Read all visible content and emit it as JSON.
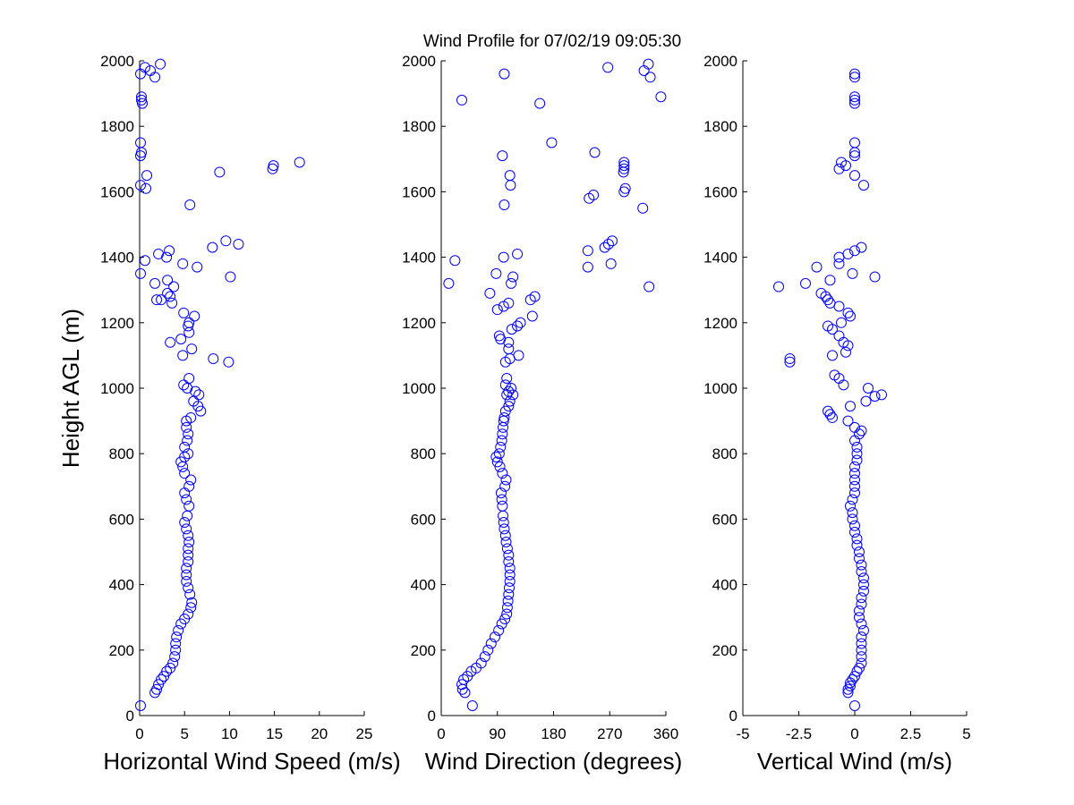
{
  "figure": {
    "title": "Wind Profile for  07/02/19 09:05:30",
    "marker_color": "#0000ff"
  },
  "chart_data": [
    {
      "type": "scatter",
      "name": "speed",
      "xlabel": "Horizontal Wind Speed (m/s)",
      "ylabel": "Height AGL (m)",
      "xlim": [
        0,
        25
      ],
      "ylim": [
        0,
        2000
      ],
      "xticks": [
        0,
        5,
        10,
        15,
        20,
        25
      ],
      "xtick_labels": [
        "0",
        "5",
        "10",
        "15",
        "20",
        "25"
      ],
      "yticks": [
        0,
        200,
        400,
        600,
        800,
        1000,
        1200,
        1400,
        1600,
        1800,
        2000
      ],
      "ytick_labels": [
        "0",
        "200",
        "400",
        "600",
        "800",
        "1000",
        "1200",
        "1400",
        "1600",
        "1800",
        "2000"
      ],
      "points": [
        [
          0.1,
          30
        ],
        [
          1.7,
          70
        ],
        [
          1.9,
          80
        ],
        [
          2.1,
          95
        ],
        [
          2.4,
          110
        ],
        [
          2.7,
          120
        ],
        [
          3.0,
          135
        ],
        [
          3.4,
          145
        ],
        [
          3.7,
          160
        ],
        [
          3.9,
          180
        ],
        [
          4.0,
          200
        ],
        [
          4.0,
          220
        ],
        [
          4.1,
          240
        ],
        [
          4.3,
          260
        ],
        [
          4.6,
          280
        ],
        [
          5.0,
          295
        ],
        [
          5.4,
          310
        ],
        [
          5.7,
          330
        ],
        [
          5.8,
          345
        ],
        [
          5.6,
          370
        ],
        [
          5.4,
          390
        ],
        [
          5.2,
          410
        ],
        [
          5.2,
          430
        ],
        [
          5.2,
          450
        ],
        [
          5.4,
          470
        ],
        [
          5.4,
          490
        ],
        [
          5.4,
          510
        ],
        [
          5.5,
          530
        ],
        [
          5.4,
          550
        ],
        [
          5.2,
          570
        ],
        [
          5.0,
          590
        ],
        [
          5.3,
          610
        ],
        [
          5.5,
          640
        ],
        [
          5.2,
          660
        ],
        [
          5.0,
          680
        ],
        [
          5.5,
          700
        ],
        [
          5.7,
          720
        ],
        [
          5.0,
          740
        ],
        [
          4.8,
          760
        ],
        [
          4.6,
          775
        ],
        [
          5.0,
          790
        ],
        [
          5.4,
          800
        ],
        [
          5.0,
          820
        ],
        [
          5.3,
          840
        ],
        [
          5.4,
          860
        ],
        [
          5.2,
          880
        ],
        [
          5.2,
          900
        ],
        [
          5.7,
          910
        ],
        [
          6.8,
          930
        ],
        [
          6.5,
          945
        ],
        [
          6.0,
          960
        ],
        [
          6.6,
          980
        ],
        [
          6.2,
          990
        ],
        [
          5.3,
          1000
        ],
        [
          4.9,
          1010
        ],
        [
          5.5,
          1030
        ],
        [
          9.9,
          1080
        ],
        [
          8.2,
          1090
        ],
        [
          4.8,
          1100
        ],
        [
          5.8,
          1120
        ],
        [
          3.4,
          1140
        ],
        [
          4.6,
          1150
        ],
        [
          5.5,
          1170
        ],
        [
          5.4,
          1190
        ],
        [
          5.5,
          1200
        ],
        [
          4.9,
          1230
        ],
        [
          6.1,
          1220
        ],
        [
          3.6,
          1260
        ],
        [
          2.4,
          1270
        ],
        [
          1.9,
          1270
        ],
        [
          3.4,
          1280
        ],
        [
          3.1,
          1290
        ],
        [
          3.8,
          1310
        ],
        [
          3.1,
          1330
        ],
        [
          1.7,
          1320
        ],
        [
          0.1,
          1350
        ],
        [
          10.1,
          1340
        ],
        [
          6.4,
          1370
        ],
        [
          4.8,
          1380
        ],
        [
          0.6,
          1390
        ],
        [
          3.0,
          1400
        ],
        [
          2.1,
          1410
        ],
        [
          3.3,
          1420
        ],
        [
          8.1,
          1430
        ],
        [
          9.6,
          1450
        ],
        [
          11.0,
          1440
        ],
        [
          5.6,
          1560
        ],
        [
          0.1,
          1620
        ],
        [
          0.7,
          1610
        ],
        [
          0.8,
          1650
        ],
        [
          8.9,
          1660
        ],
        [
          14.8,
          1670
        ],
        [
          14.9,
          1680
        ],
        [
          17.8,
          1690
        ],
        [
          0.1,
          1710
        ],
        [
          0.2,
          1720
        ],
        [
          0.1,
          1750
        ],
        [
          0.3,
          1870
        ],
        [
          0.2,
          1880
        ],
        [
          0.2,
          1890
        ],
        [
          0.1,
          1960
        ],
        [
          0.6,
          1980
        ],
        [
          1.2,
          1970
        ],
        [
          1.7,
          1950
        ],
        [
          2.3,
          1990
        ]
      ]
    },
    {
      "type": "scatter",
      "name": "direction",
      "xlabel": "Wind Direction (degrees)",
      "ylabel": "",
      "xlim": [
        0,
        360
      ],
      "ylim": [
        0,
        2000
      ],
      "xticks": [
        0,
        90,
        180,
        270,
        360
      ],
      "xtick_labels": [
        "0",
        "90",
        "180",
        "270",
        "360"
      ],
      "yticks": [
        0,
        200,
        400,
        600,
        800,
        1000,
        1200,
        1400,
        1600,
        1800,
        2000
      ],
      "ytick_labels": [
        "0",
        "200",
        "400",
        "600",
        "800",
        "1000",
        "1200",
        "1400",
        "1600",
        "1800",
        "2000"
      ],
      "points": [
        [
          50,
          30
        ],
        [
          38,
          70
        ],
        [
          34,
          80
        ],
        [
          33,
          95
        ],
        [
          36,
          110
        ],
        [
          42,
          120
        ],
        [
          48,
          135
        ],
        [
          56,
          145
        ],
        [
          64,
          160
        ],
        [
          70,
          180
        ],
        [
          75,
          200
        ],
        [
          80,
          220
        ],
        [
          86,
          240
        ],
        [
          92,
          260
        ],
        [
          97,
          280
        ],
        [
          102,
          295
        ],
        [
          105,
          310
        ],
        [
          106,
          330
        ],
        [
          107,
          350
        ],
        [
          108,
          370
        ],
        [
          109,
          390
        ],
        [
          110,
          410
        ],
        [
          110,
          430
        ],
        [
          110,
          450
        ],
        [
          108,
          470
        ],
        [
          108,
          490
        ],
        [
          106,
          510
        ],
        [
          104,
          530
        ],
        [
          103,
          550
        ],
        [
          101,
          570
        ],
        [
          100,
          590
        ],
        [
          99,
          610
        ],
        [
          98,
          640
        ],
        [
          97,
          660
        ],
        [
          96,
          680
        ],
        [
          102,
          700
        ],
        [
          104,
          720
        ],
        [
          98,
          740
        ],
        [
          94,
          760
        ],
        [
          90,
          775
        ],
        [
          88,
          790
        ],
        [
          93,
          800
        ],
        [
          95,
          820
        ],
        [
          97,
          840
        ],
        [
          98,
          860
        ],
        [
          99,
          880
        ],
        [
          100,
          900
        ],
        [
          101,
          910
        ],
        [
          103,
          930
        ],
        [
          108,
          945
        ],
        [
          110,
          960
        ],
        [
          105,
          980
        ],
        [
          115,
          980
        ],
        [
          108,
          990
        ],
        [
          112,
          1000
        ],
        [
          103,
          1010
        ],
        [
          105,
          1030
        ],
        [
          103,
          1080
        ],
        [
          110,
          1090
        ],
        [
          124,
          1100
        ],
        [
          108,
          1120
        ],
        [
          108,
          1140
        ],
        [
          95,
          1150
        ],
        [
          93,
          1160
        ],
        [
          113,
          1180
        ],
        [
          122,
          1190
        ],
        [
          127,
          1200
        ],
        [
          146,
          1220
        ],
        [
          90,
          1240
        ],
        [
          100,
          1250
        ],
        [
          108,
          1260
        ],
        [
          143,
          1270
        ],
        [
          150,
          1280
        ],
        [
          78,
          1290
        ],
        [
          12,
          1320
        ],
        [
          112,
          1320
        ],
        [
          115,
          1340
        ],
        [
          88,
          1350
        ],
        [
          22,
          1390
        ],
        [
          100,
          1400
        ],
        [
          122,
          1410
        ],
        [
          235,
          1370
        ],
        [
          272,
          1380
        ],
        [
          235,
          1420
        ],
        [
          262,
          1430
        ],
        [
          268,
          1440
        ],
        [
          274,
          1450
        ],
        [
          333,
          1310
        ],
        [
          323,
          1550
        ],
        [
          101,
          1560
        ],
        [
          237,
          1580
        ],
        [
          244,
          1590
        ],
        [
          293,
          1600
        ],
        [
          295,
          1610
        ],
        [
          111,
          1620
        ],
        [
          110,
          1650
        ],
        [
          292,
          1660
        ],
        [
          293,
          1670
        ],
        [
          293,
          1680
        ],
        [
          293,
          1690
        ],
        [
          98,
          1710
        ],
        [
          246,
          1720
        ],
        [
          177,
          1750
        ],
        [
          158,
          1870
        ],
        [
          33,
          1880
        ],
        [
          352,
          1890
        ],
        [
          101,
          1960
        ],
        [
          267,
          1980
        ],
        [
          325,
          1970
        ],
        [
          335,
          1950
        ],
        [
          332,
          1990
        ]
      ]
    },
    {
      "type": "scatter",
      "name": "vertical",
      "xlabel": "Vertical Wind (m/s)",
      "ylabel": "",
      "xlim": [
        -5,
        5
      ],
      "ylim": [
        0,
        2000
      ],
      "xticks": [
        -5,
        -2.5,
        0,
        2.5,
        5
      ],
      "xtick_labels": [
        "-5",
        "-2.5",
        "0",
        "2.5",
        "5"
      ],
      "yticks": [
        0,
        200,
        400,
        600,
        800,
        1000,
        1200,
        1400,
        1600,
        1800,
        2000
      ],
      "ytick_labels": [
        "0",
        "200",
        "400",
        "600",
        "800",
        "1000",
        "1200",
        "1400",
        "1600",
        "1800",
        "2000"
      ],
      "points": [
        [
          0.0,
          30
        ],
        [
          -0.3,
          70
        ],
        [
          -0.3,
          80
        ],
        [
          -0.2,
          90
        ],
        [
          -0.2,
          100
        ],
        [
          -0.1,
          110
        ],
        [
          0.0,
          120
        ],
        [
          0.1,
          135
        ],
        [
          0.2,
          145
        ],
        [
          0.3,
          160
        ],
        [
          0.3,
          180
        ],
        [
          0.3,
          200
        ],
        [
          0.3,
          220
        ],
        [
          0.3,
          240
        ],
        [
          0.4,
          260
        ],
        [
          0.3,
          280
        ],
        [
          0.2,
          300
        ],
        [
          0.2,
          320
        ],
        [
          0.3,
          340
        ],
        [
          0.3,
          360
        ],
        [
          0.4,
          380
        ],
        [
          0.4,
          400
        ],
        [
          0.4,
          420
        ],
        [
          0.3,
          440
        ],
        [
          0.3,
          460
        ],
        [
          0.2,
          480
        ],
        [
          0.2,
          500
        ],
        [
          0.1,
          520
        ],
        [
          0.1,
          540
        ],
        [
          0.0,
          560
        ],
        [
          0.0,
          580
        ],
        [
          -0.1,
          600
        ],
        [
          -0.1,
          620
        ],
        [
          -0.2,
          640
        ],
        [
          -0.1,
          660
        ],
        [
          0.0,
          680
        ],
        [
          0.0,
          700
        ],
        [
          0.0,
          720
        ],
        [
          0.0,
          740
        ],
        [
          0.0,
          760
        ],
        [
          0.1,
          780
        ],
        [
          0.1,
          800
        ],
        [
          0.1,
          820
        ],
        [
          0.0,
          840
        ],
        [
          0.2,
          860
        ],
        [
          0.3,
          870
        ],
        [
          0.0,
          880
        ],
        [
          -0.3,
          900
        ],
        [
          -1.0,
          910
        ],
        [
          -1.1,
          920
        ],
        [
          -1.2,
          930
        ],
        [
          -0.2,
          945
        ],
        [
          0.5,
          960
        ],
        [
          0.9,
          975
        ],
        [
          1.2,
          980
        ],
        [
          0.6,
          1000
        ],
        [
          -0.5,
          1010
        ],
        [
          -0.7,
          1030
        ],
        [
          -0.9,
          1040
        ],
        [
          -2.9,
          1080
        ],
        [
          -2.9,
          1090
        ],
        [
          -1.0,
          1100
        ],
        [
          -0.4,
          1110
        ],
        [
          -0.3,
          1130
        ],
        [
          -0.5,
          1140
        ],
        [
          -0.7,
          1160
        ],
        [
          -1.0,
          1180
        ],
        [
          -1.2,
          1190
        ],
        [
          -0.6,
          1200
        ],
        [
          -0.2,
          1220
        ],
        [
          -0.3,
          1230
        ],
        [
          -0.7,
          1250
        ],
        [
          -1.1,
          1260
        ],
        [
          -1.2,
          1270
        ],
        [
          -1.3,
          1280
        ],
        [
          -1.5,
          1290
        ],
        [
          -3.4,
          1310
        ],
        [
          -2.2,
          1320
        ],
        [
          -1.1,
          1330
        ],
        [
          0.9,
          1340
        ],
        [
          -0.1,
          1350
        ],
        [
          -1.7,
          1370
        ],
        [
          -0.7,
          1380
        ],
        [
          -0.7,
          1400
        ],
        [
          -0.3,
          1410
        ],
        [
          0.0,
          1420
        ],
        [
          0.3,
          1430
        ],
        [
          0.4,
          1620
        ],
        [
          -0.7,
          1670
        ],
        [
          -0.4,
          1680
        ],
        [
          -0.6,
          1690
        ],
        [
          0.0,
          1650
        ],
        [
          0.0,
          1710
        ],
        [
          0.0,
          1720
        ],
        [
          0.0,
          1750
        ],
        [
          0.0,
          1870
        ],
        [
          0.0,
          1880
        ],
        [
          0.0,
          1890
        ],
        [
          0.0,
          1950
        ],
        [
          0.0,
          1960
        ]
      ]
    }
  ]
}
